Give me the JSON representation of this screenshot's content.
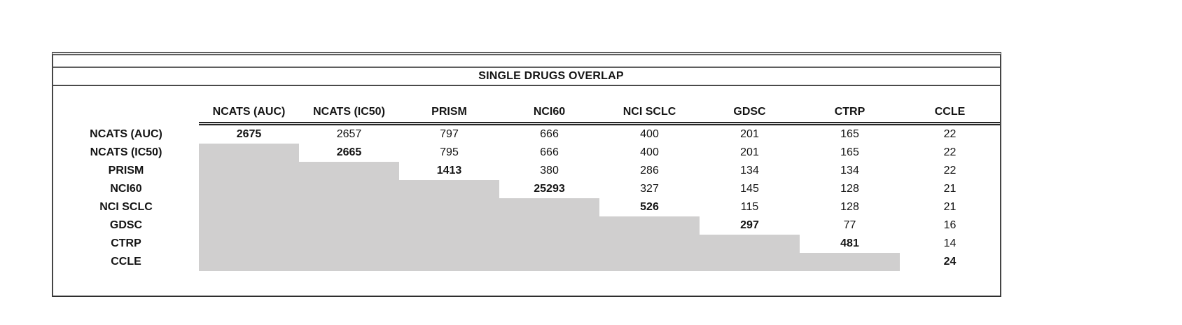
{
  "chart_data": {
    "type": "table",
    "title": "SINGLE DRUGS OVERLAP",
    "description": "Upper-triangular pairwise overlap matrix of single drugs between datasets; lower triangle shaded gray; diagonal (self-overlap counts) in bold",
    "columns": [
      "NCATS (AUC)",
      "NCATS (IC50)",
      "PRISM",
      "NCI60",
      "NCI SCLC",
      "GDSC",
      "CTRP",
      "CCLE"
    ],
    "rows": [
      {
        "label": "NCATS (AUC)",
        "values": [
          2675,
          2657,
          797,
          666,
          400,
          201,
          165,
          22
        ]
      },
      {
        "label": "NCATS (IC50)",
        "values": [
          2665,
          795,
          666,
          400,
          201,
          165,
          22
        ]
      },
      {
        "label": "PRISM",
        "values": [
          1413,
          380,
          286,
          134,
          134,
          22
        ]
      },
      {
        "label": "NCI60",
        "values": [
          25293,
          327,
          145,
          128,
          21
        ]
      },
      {
        "label": "NCI SCLC",
        "values": [
          526,
          115,
          128,
          21
        ]
      },
      {
        "label": "GDSC",
        "values": [
          297,
          77,
          16
        ]
      },
      {
        "label": "CTRP",
        "values": [
          481,
          14
        ]
      },
      {
        "label": "CCLE",
        "values": [
          24
        ]
      }
    ],
    "diagonal_values": [
      2675,
      2665,
      1413,
      25293,
      526,
      297,
      481,
      24
    ],
    "diagonal_bold": true,
    "layout": {
      "legend": "none",
      "grid": "off",
      "lower_triangle_fill": "#d0cfcf",
      "header_underline": "double",
      "title_separator_lines": true
    }
  },
  "colors": {
    "background": "#ffffff",
    "shaded_cell": "#d0cfcf",
    "border_dark": "#2e2e2e",
    "border_gray": "#5f5f5f",
    "text": "#141414"
  }
}
